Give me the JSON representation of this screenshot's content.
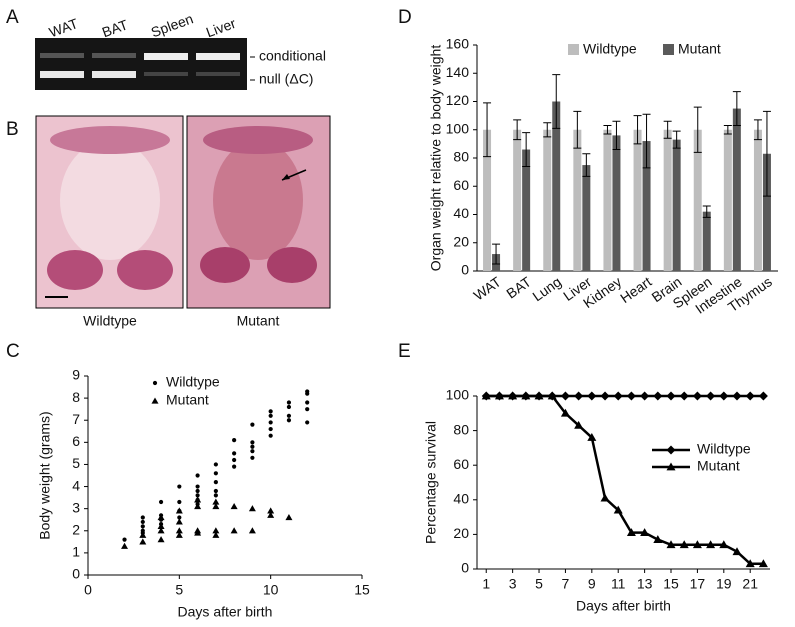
{
  "panel_labels": [
    "A",
    "B",
    "C",
    "D",
    "E"
  ],
  "gel": {
    "lanes": [
      "WAT",
      "BAT",
      "Spleen",
      "Liver"
    ],
    "bands": [
      "conditional",
      "null (ΔC)"
    ]
  },
  "photos": {
    "captions": [
      "Wildtype",
      "Mutant"
    ]
  },
  "chart_data": [
    {
      "type": "bar",
      "y_label": "Organ weight relative to body weight",
      "categories": [
        "WAT",
        "BAT",
        "Lung",
        "Liver",
        "Kidney",
        "Heart",
        "Brain",
        "Spleen",
        "Intestine",
        "Thymus"
      ],
      "series": [
        {
          "name": "Wildtype",
          "color": "#bdbdbd",
          "values": [
            100,
            100,
            100,
            100,
            100,
            100,
            100,
            100,
            100,
            100
          ],
          "errors": [
            19,
            7,
            5,
            13,
            3,
            10,
            6,
            16,
            3,
            7
          ]
        },
        {
          "name": "Mutant",
          "color": "#5a5a5a",
          "values": [
            12,
            86,
            120,
            75,
            96,
            92,
            93,
            42,
            115,
            83
          ],
          "errors": [
            7,
            12,
            19,
            8,
            10,
            19,
            6,
            4,
            12,
            30
          ]
        }
      ],
      "ylim": [
        0,
        160
      ],
      "yticks": [
        0,
        20,
        40,
        60,
        80,
        100,
        120,
        140,
        160
      ],
      "legend": "top"
    },
    {
      "type": "scatter",
      "x_label": "Days after birth",
      "y_label": "Body weight (grams)",
      "series": [
        {
          "name": "Wildtype",
          "color": "#000000",
          "marker": "circle",
          "x": [
            2,
            3,
            3,
            3,
            3,
            3,
            4,
            4,
            4,
            4,
            5,
            5,
            5,
            5,
            6,
            6,
            6,
            6,
            6,
            6,
            7,
            7,
            7,
            7,
            7,
            8,
            8,
            8,
            8,
            9,
            9,
            9,
            9,
            9,
            10,
            10,
            10,
            10,
            10,
            11,
            11,
            11,
            11,
            12,
            12,
            12,
            12,
            12
          ],
          "values": [
            1.6,
            2.6,
            2.4,
            2.2,
            2.0,
            1.9,
            3.3,
            2.7,
            2.5,
            2.3,
            4.0,
            3.3,
            2.9,
            2.6,
            4.5,
            4.0,
            3.8,
            3.6,
            3.4,
            3.2,
            5.0,
            4.6,
            4.2,
            3.8,
            3.6,
            6.1,
            5.5,
            5.2,
            4.9,
            6.8,
            6.0,
            5.8,
            5.6,
            5.3,
            7.4,
            7.2,
            6.9,
            6.6,
            6.3,
            7.8,
            7.6,
            7.2,
            7.0,
            8.3,
            8.2,
            7.8,
            7.5,
            6.9
          ]
        },
        {
          "name": "Mutant",
          "color": "#000000",
          "marker": "triangle",
          "x": [
            2,
            3,
            3,
            4,
            4,
            4,
            4,
            5,
            5,
            5,
            5,
            6,
            6,
            6,
            6,
            7,
            7,
            7,
            7,
            8,
            8,
            9,
            9,
            10,
            10,
            11
          ],
          "values": [
            1.3,
            1.8,
            1.5,
            2.6,
            2.2,
            2.0,
            1.6,
            2.9,
            2.4,
            2.0,
            1.8,
            3.4,
            3.1,
            2.0,
            1.9,
            3.3,
            3.1,
            2.0,
            1.8,
            3.1,
            2.0,
            3.0,
            2.0,
            2.9,
            2.7,
            2.6
          ]
        }
      ],
      "xlim": [
        0,
        15
      ],
      "xticks": [
        0,
        5,
        10,
        15
      ],
      "ylim": [
        0,
        9
      ],
      "yticks": [
        0,
        1,
        2,
        3,
        4,
        5,
        6,
        7,
        8,
        9
      ],
      "legend": "top left"
    },
    {
      "type": "line",
      "x_label": "Days after birth",
      "y_label": "Percentage survival",
      "x": [
        1,
        2,
        3,
        4,
        5,
        6,
        7,
        8,
        9,
        10,
        11,
        12,
        13,
        14,
        15,
        16,
        17,
        18,
        19,
        20,
        21,
        22
      ],
      "series": [
        {
          "name": "Wildtype",
          "color": "#000000",
          "marker": "diamond",
          "values": [
            100,
            100,
            100,
            100,
            100,
            100,
            100,
            100,
            100,
            100,
            100,
            100,
            100,
            100,
            100,
            100,
            100,
            100,
            100,
            100,
            100,
            100
          ]
        },
        {
          "name": "Mutant",
          "color": "#000000",
          "marker": "triangle",
          "values": [
            100,
            100,
            100,
            100,
            100,
            100,
            90,
            83,
            76,
            41,
            34,
            21,
            21,
            17,
            14,
            14,
            14,
            14,
            14,
            10,
            3,
            3
          ]
        }
      ],
      "xlim": [
        0.3,
        22.5
      ],
      "xticks": [
        1,
        3,
        5,
        7,
        9,
        11,
        13,
        15,
        17,
        19,
        21
      ],
      "ylim": [
        0,
        100
      ],
      "yticks": [
        0,
        20,
        40,
        60,
        80,
        100
      ],
      "legend": "right"
    }
  ]
}
